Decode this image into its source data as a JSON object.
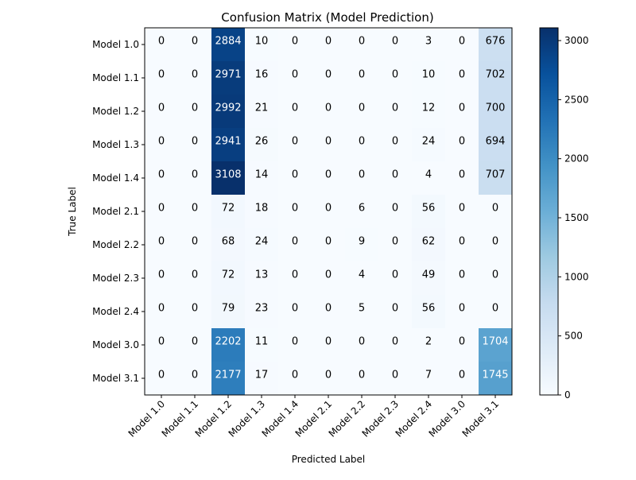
{
  "chart_data": {
    "type": "heatmap",
    "title": "Confusion Matrix (Model Prediction)",
    "xlabel": "Predicted Label",
    "ylabel": "True Label",
    "x_categories": [
      "Model 1.0",
      "Model 1.1",
      "Model 1.2",
      "Model 1.3",
      "Model 1.4",
      "Model 2.1",
      "Model 2.2",
      "Model 2.3",
      "Model 2.4",
      "Model 3.0",
      "Model 3.1"
    ],
    "y_categories": [
      "Model 1.0",
      "Model 1.1",
      "Model 1.2",
      "Model 1.3",
      "Model 1.4",
      "Model 2.1",
      "Model 2.2",
      "Model 2.3",
      "Model 2.4",
      "Model 3.0",
      "Model 3.1"
    ],
    "values": [
      [
        0,
        0,
        2884,
        10,
        0,
        0,
        0,
        0,
        3,
        0,
        676
      ],
      [
        0,
        0,
        2971,
        16,
        0,
        0,
        0,
        0,
        10,
        0,
        702
      ],
      [
        0,
        0,
        2992,
        21,
        0,
        0,
        0,
        0,
        12,
        0,
        700
      ],
      [
        0,
        0,
        2941,
        26,
        0,
        0,
        0,
        0,
        24,
        0,
        694
      ],
      [
        0,
        0,
        3108,
        14,
        0,
        0,
        0,
        0,
        4,
        0,
        707
      ],
      [
        0,
        0,
        72,
        18,
        0,
        0,
        6,
        0,
        56,
        0,
        0
      ],
      [
        0,
        0,
        68,
        24,
        0,
        0,
        9,
        0,
        62,
        0,
        0
      ],
      [
        0,
        0,
        72,
        13,
        0,
        0,
        4,
        0,
        49,
        0,
        0
      ],
      [
        0,
        0,
        79,
        23,
        0,
        0,
        5,
        0,
        56,
        0,
        0
      ],
      [
        0,
        0,
        2202,
        11,
        0,
        0,
        0,
        0,
        2,
        0,
        1704
      ],
      [
        0,
        0,
        2177,
        17,
        0,
        0,
        0,
        0,
        7,
        0,
        1745
      ]
    ],
    "colormap": "Blues",
    "vmin": 0,
    "vmax": 3108,
    "colorbar_ticks": [
      0,
      500,
      1000,
      1500,
      2000,
      2500,
      3000
    ],
    "grid": false
  }
}
